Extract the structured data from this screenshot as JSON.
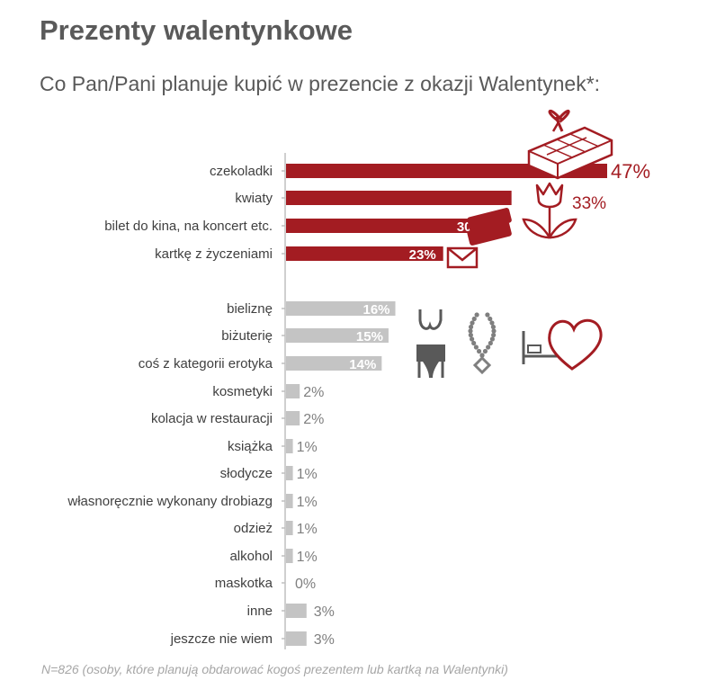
{
  "header": {
    "title": "Prezenty walentynkowe",
    "subtitle": "Co Pan/Pani planuje kupić w prezencie z okazji Walentynek*:"
  },
  "footnote": "N=826 (osoby, które planują obdarować kogoś prezentem lub kartką na Walentynki)",
  "colors": {
    "accent": "#a31c22",
    "neutral": "#c4c4c4",
    "axis": "#bfbfbf",
    "icon_dark": "#595959"
  },
  "icons": [
    "chocolate-gift-icon",
    "tulip-icon",
    "ticket-icon",
    "envelope-icon",
    "lingerie-icon",
    "necklace-icon",
    "bed-heart-icon"
  ],
  "chart_data": {
    "type": "bar",
    "orientation": "horizontal",
    "unit": "%",
    "categories": [
      "czekoladki",
      "kwiaty",
      "bilet do kina, na koncert etc.",
      "kartkę z życzeniami",
      "bieliznę",
      "biżuterię",
      "coś z kategorii erotyka",
      "kosmetyki",
      "kolacja w restauracji",
      "książka",
      "słodycze",
      "własnoręcznie wykonany drobiazg",
      "odzież",
      "alkohol",
      "maskotka",
      "inne",
      "jeszcze nie wiem"
    ],
    "values": [
      47,
      33,
      30,
      23,
      16,
      15,
      14,
      2,
      2,
      1,
      1,
      1,
      1,
      1,
      0,
      3,
      3
    ],
    "labels": [
      "47%",
      "33%",
      "30%",
      "23%",
      "16%",
      "15%",
      "14%",
      "2%",
      "2%",
      "1%",
      "1%",
      "1%",
      "1%",
      "1%",
      "0%",
      "3%",
      "3%"
    ],
    "highlight_count": 4,
    "xlim": [
      0,
      47
    ]
  }
}
